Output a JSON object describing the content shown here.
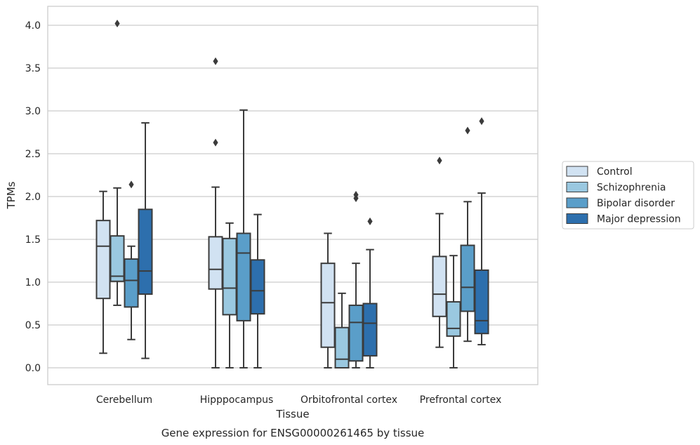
{
  "chart_data": {
    "type": "box",
    "title": "",
    "caption": "Gene expression for ENSG00000261465 by tissue",
    "xlabel": "Tissue",
    "ylabel": "TPMs",
    "ylim": [
      -0.19,
      4.22
    ],
    "yticks": [
      "0.0",
      "0.5",
      "1.0",
      "1.5",
      "2.0",
      "2.5",
      "3.0",
      "3.5",
      "4.0"
    ],
    "grid": "horizontal",
    "legend_position": "right",
    "categories": [
      "Cerebellum",
      "Hipppocampus",
      "Orbitofrontal cortex",
      "Prefrontal cortex"
    ],
    "series": [
      {
        "name": "Control",
        "color": "#d1e2f2",
        "boxes": [
          {
            "whisker_low": 0.17,
            "q1": 0.81,
            "median": 1.42,
            "q3": 1.72,
            "whisker_high": 2.06,
            "outliers": []
          },
          {
            "whisker_low": 0.0,
            "q1": 0.92,
            "median": 1.15,
            "q3": 1.53,
            "whisker_high": 2.11,
            "outliers": [
              2.63,
              3.58
            ]
          },
          {
            "whisker_low": 0.0,
            "q1": 0.24,
            "median": 0.76,
            "q3": 1.22,
            "whisker_high": 1.57,
            "outliers": []
          },
          {
            "whisker_low": 0.24,
            "q1": 0.6,
            "median": 0.86,
            "q3": 1.3,
            "whisker_high": 1.8,
            "outliers": [
              2.42
            ]
          }
        ]
      },
      {
        "name": "Schizophrenia",
        "color": "#9ac8e0",
        "boxes": [
          {
            "whisker_low": 0.73,
            "q1": 1.01,
            "median": 1.07,
            "q3": 1.54,
            "whisker_high": 2.1,
            "outliers": [
              4.02
            ]
          },
          {
            "whisker_low": 0.0,
            "q1": 0.62,
            "median": 0.93,
            "q3": 1.51,
            "whisker_high": 1.69,
            "outliers": []
          },
          {
            "whisker_low": 0.0,
            "q1": 0.0,
            "median": 0.1,
            "q3": 0.47,
            "whisker_high": 0.87,
            "outliers": []
          },
          {
            "whisker_low": 0.0,
            "q1": 0.37,
            "median": 0.46,
            "q3": 0.77,
            "whisker_high": 1.31,
            "outliers": []
          }
        ]
      },
      {
        "name": "Bipolar disorder",
        "color": "#5a9ec9",
        "boxes": [
          {
            "whisker_low": 0.33,
            "q1": 0.71,
            "median": 1.02,
            "q3": 1.27,
            "whisker_high": 1.42,
            "outliers": [
              2.14
            ]
          },
          {
            "whisker_low": 0.0,
            "q1": 0.55,
            "median": 1.34,
            "q3": 1.57,
            "whisker_high": 3.01,
            "outliers": []
          },
          {
            "whisker_low": 0.0,
            "q1": 0.08,
            "median": 0.53,
            "q3": 0.73,
            "whisker_high": 1.22,
            "outliers": [
              1.98,
              2.02
            ]
          },
          {
            "whisker_low": 0.31,
            "q1": 0.66,
            "median": 0.94,
            "q3": 1.43,
            "whisker_high": 1.94,
            "outliers": [
              2.77
            ]
          }
        ]
      },
      {
        "name": "Major depression",
        "color": "#2d6fad",
        "boxes": [
          {
            "whisker_low": 0.11,
            "q1": 0.86,
            "median": 1.13,
            "q3": 1.85,
            "whisker_high": 2.86,
            "outliers": []
          },
          {
            "whisker_low": 0.0,
            "q1": 0.63,
            "median": 0.9,
            "q3": 1.26,
            "whisker_high": 1.79,
            "outliers": []
          },
          {
            "whisker_low": 0.0,
            "q1": 0.14,
            "median": 0.52,
            "q3": 0.75,
            "whisker_high": 1.38,
            "outliers": [
              1.71
            ]
          },
          {
            "whisker_low": 0.27,
            "q1": 0.4,
            "median": 0.55,
            "q3": 1.14,
            "whisker_high": 2.04,
            "outliers": [
              2.88
            ]
          }
        ]
      }
    ]
  }
}
